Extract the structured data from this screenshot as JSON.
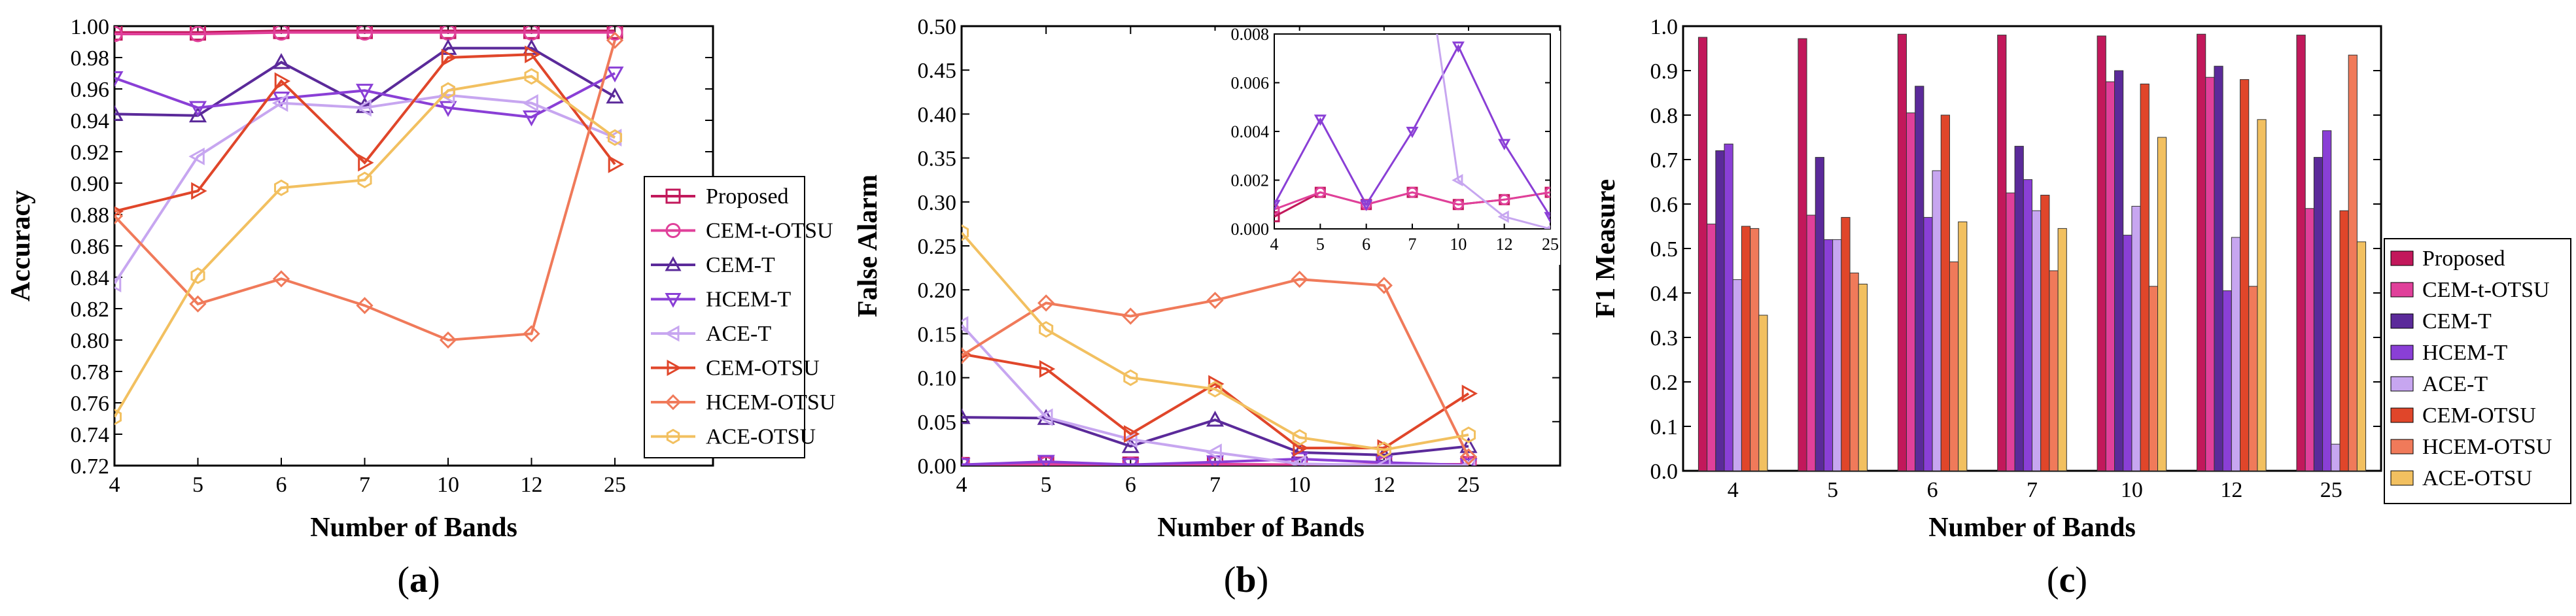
{
  "figure": {
    "panel_labels": [
      "(a)",
      "(b)",
      "(c)"
    ],
    "panel_label_letters": [
      "a",
      "b",
      "c"
    ]
  },
  "series_colors": {
    "Proposed": "#c2185b",
    "CEM-t-OTSU": "#e0409a",
    "CEM-T": "#5b2a9a",
    "HCEM-T": "#8a3fd6",
    "ACE-T": "#c7a6f0",
    "CEM-OTSU": "#e0462a",
    "HCEM-OTSU": "#f07a5a",
    "ACE-OTSU": "#f2c060"
  },
  "series_markers": {
    "Proposed": "square",
    "CEM-t-OTSU": "circle",
    "CEM-T": "triangle-up",
    "HCEM-T": "triangle-down",
    "ACE-T": "triangle-left",
    "CEM-OTSU": "triangle-right",
    "HCEM-OTSU": "diamond",
    "ACE-OTSU": "hexagon"
  },
  "chart_data": [
    {
      "id": "a",
      "type": "line",
      "xlabel": "Number of Bands",
      "ylabel": "Accuracy",
      "categories": [
        "4",
        "5",
        "6",
        "7",
        "10",
        "12",
        "25"
      ],
      "ylim": [
        0.72,
        1.0
      ],
      "yticks": [
        "0.72",
        "0.74",
        "0.76",
        "0.78",
        "0.80",
        "0.82",
        "0.84",
        "0.86",
        "0.88",
        "0.90",
        "0.92",
        "0.94",
        "0.96",
        "0.98",
        "1.00"
      ],
      "legend_position": "right",
      "series": [
        {
          "name": "Proposed",
          "values": [
            0.996,
            0.996,
            0.997,
            0.997,
            0.997,
            0.997,
            0.997
          ]
        },
        {
          "name": "CEM-t-OTSU",
          "values": [
            0.995,
            0.995,
            0.996,
            0.996,
            0.996,
            0.996,
            0.996
          ]
        },
        {
          "name": "CEM-T",
          "values": [
            0.944,
            0.943,
            0.977,
            0.949,
            0.986,
            0.986,
            0.955
          ]
        },
        {
          "name": "HCEM-T",
          "values": [
            0.967,
            0.948,
            0.954,
            0.959,
            0.948,
            0.942,
            0.97
          ]
        },
        {
          "name": "ACE-T",
          "values": [
            0.836,
            0.917,
            0.951,
            0.948,
            0.956,
            0.951,
            0.929
          ]
        },
        {
          "name": "CEM-OTSU",
          "values": [
            0.882,
            0.895,
            0.965,
            0.913,
            0.98,
            0.982,
            0.912
          ]
        },
        {
          "name": "HCEM-OTSU",
          "values": [
            0.879,
            0.823,
            0.839,
            0.822,
            0.8,
            0.804,
            0.991
          ]
        },
        {
          "name": "ACE-OTSU",
          "values": [
            0.751,
            0.841,
            0.897,
            0.902,
            0.959,
            0.968,
            0.929
          ]
        }
      ]
    },
    {
      "id": "b",
      "type": "line",
      "xlabel": "Number of Bands",
      "ylabel": "False Alarm",
      "categories": [
        "4",
        "5",
        "6",
        "7",
        "10",
        "12",
        "25"
      ],
      "ylim": [
        0.0,
        0.5
      ],
      "yticks": [
        "0.00",
        "0.05",
        "0.10",
        "0.15",
        "0.20",
        "0.25",
        "0.30",
        "0.35",
        "0.40",
        "0.45",
        "0.50"
      ],
      "series": [
        {
          "name": "Proposed",
          "values": [
            0.0005,
            0.0015,
            0.001,
            0.0015,
            0.001,
            0.0012,
            0.0015
          ]
        },
        {
          "name": "CEM-t-OTSU",
          "values": [
            0.0008,
            0.0015,
            0.001,
            0.0015,
            0.001,
            0.0012,
            0.0015
          ]
        },
        {
          "name": "CEM-T",
          "values": [
            0.055,
            0.054,
            0.022,
            0.052,
            0.015,
            0.012,
            0.022
          ]
        },
        {
          "name": "HCEM-T",
          "values": [
            0.001,
            0.0045,
            0.001,
            0.004,
            0.0075,
            0.0035,
            0.0005
          ]
        },
        {
          "name": "ACE-T",
          "values": [
            0.16,
            0.055,
            0.03,
            0.015,
            0.002,
            0.0005,
            0.0
          ]
        },
        {
          "name": "CEM-OTSU",
          "values": [
            0.127,
            0.11,
            0.036,
            0.093,
            0.02,
            0.02,
            0.082
          ]
        },
        {
          "name": "HCEM-OTSU",
          "values": [
            0.125,
            0.185,
            0.17,
            0.188,
            0.212,
            0.205,
            0.01
          ]
        },
        {
          "name": "ACE-OTSU",
          "values": [
            0.265,
            0.155,
            0.1,
            0.087,
            0.032,
            0.018,
            0.035
          ]
        }
      ],
      "inset": {
        "ylim": [
          0.0,
          0.008
        ],
        "yticks": [
          "0.000",
          "0.002",
          "0.004",
          "0.006",
          "0.008"
        ],
        "categories": [
          "4",
          "5",
          "6",
          "7",
          "10",
          "12",
          "25"
        ]
      }
    },
    {
      "id": "c",
      "type": "bar",
      "xlabel": "Number of Bands",
      "ylabel": "F1 Measure",
      "categories": [
        "4",
        "5",
        "6",
        "7",
        "10",
        "12",
        "25"
      ],
      "ylim": [
        0.0,
        1.0
      ],
      "yticks": [
        "0.0",
        "0.1",
        "0.2",
        "0.3",
        "0.4",
        "0.5",
        "0.6",
        "0.7",
        "0.8",
        "0.9",
        "1.0"
      ],
      "legend_position": "right",
      "series": [
        {
          "name": "Proposed",
          "values": [
            0.975,
            0.972,
            0.982,
            0.98,
            0.978,
            0.982,
            0.98
          ]
        },
        {
          "name": "CEM-t-OTSU",
          "values": [
            0.555,
            0.575,
            0.805,
            0.625,
            0.875,
            0.885,
            0.59
          ]
        },
        {
          "name": "CEM-T",
          "values": [
            0.72,
            0.705,
            0.865,
            0.73,
            0.9,
            0.91,
            0.705
          ]
        },
        {
          "name": "HCEM-T",
          "values": [
            0.735,
            0.52,
            0.57,
            0.655,
            0.53,
            0.405,
            0.765
          ]
        },
        {
          "name": "ACE-T",
          "values": [
            0.43,
            0.52,
            0.675,
            0.585,
            0.595,
            0.525,
            0.06
          ]
        },
        {
          "name": "CEM-OTSU",
          "values": [
            0.55,
            0.57,
            0.8,
            0.62,
            0.87,
            0.88,
            0.585
          ]
        },
        {
          "name": "HCEM-OTSU",
          "values": [
            0.545,
            0.445,
            0.47,
            0.45,
            0.415,
            0.415,
            0.935
          ]
        },
        {
          "name": "ACE-OTSU",
          "values": [
            0.35,
            0.42,
            0.56,
            0.545,
            0.75,
            0.79,
            0.515
          ]
        }
      ]
    }
  ]
}
